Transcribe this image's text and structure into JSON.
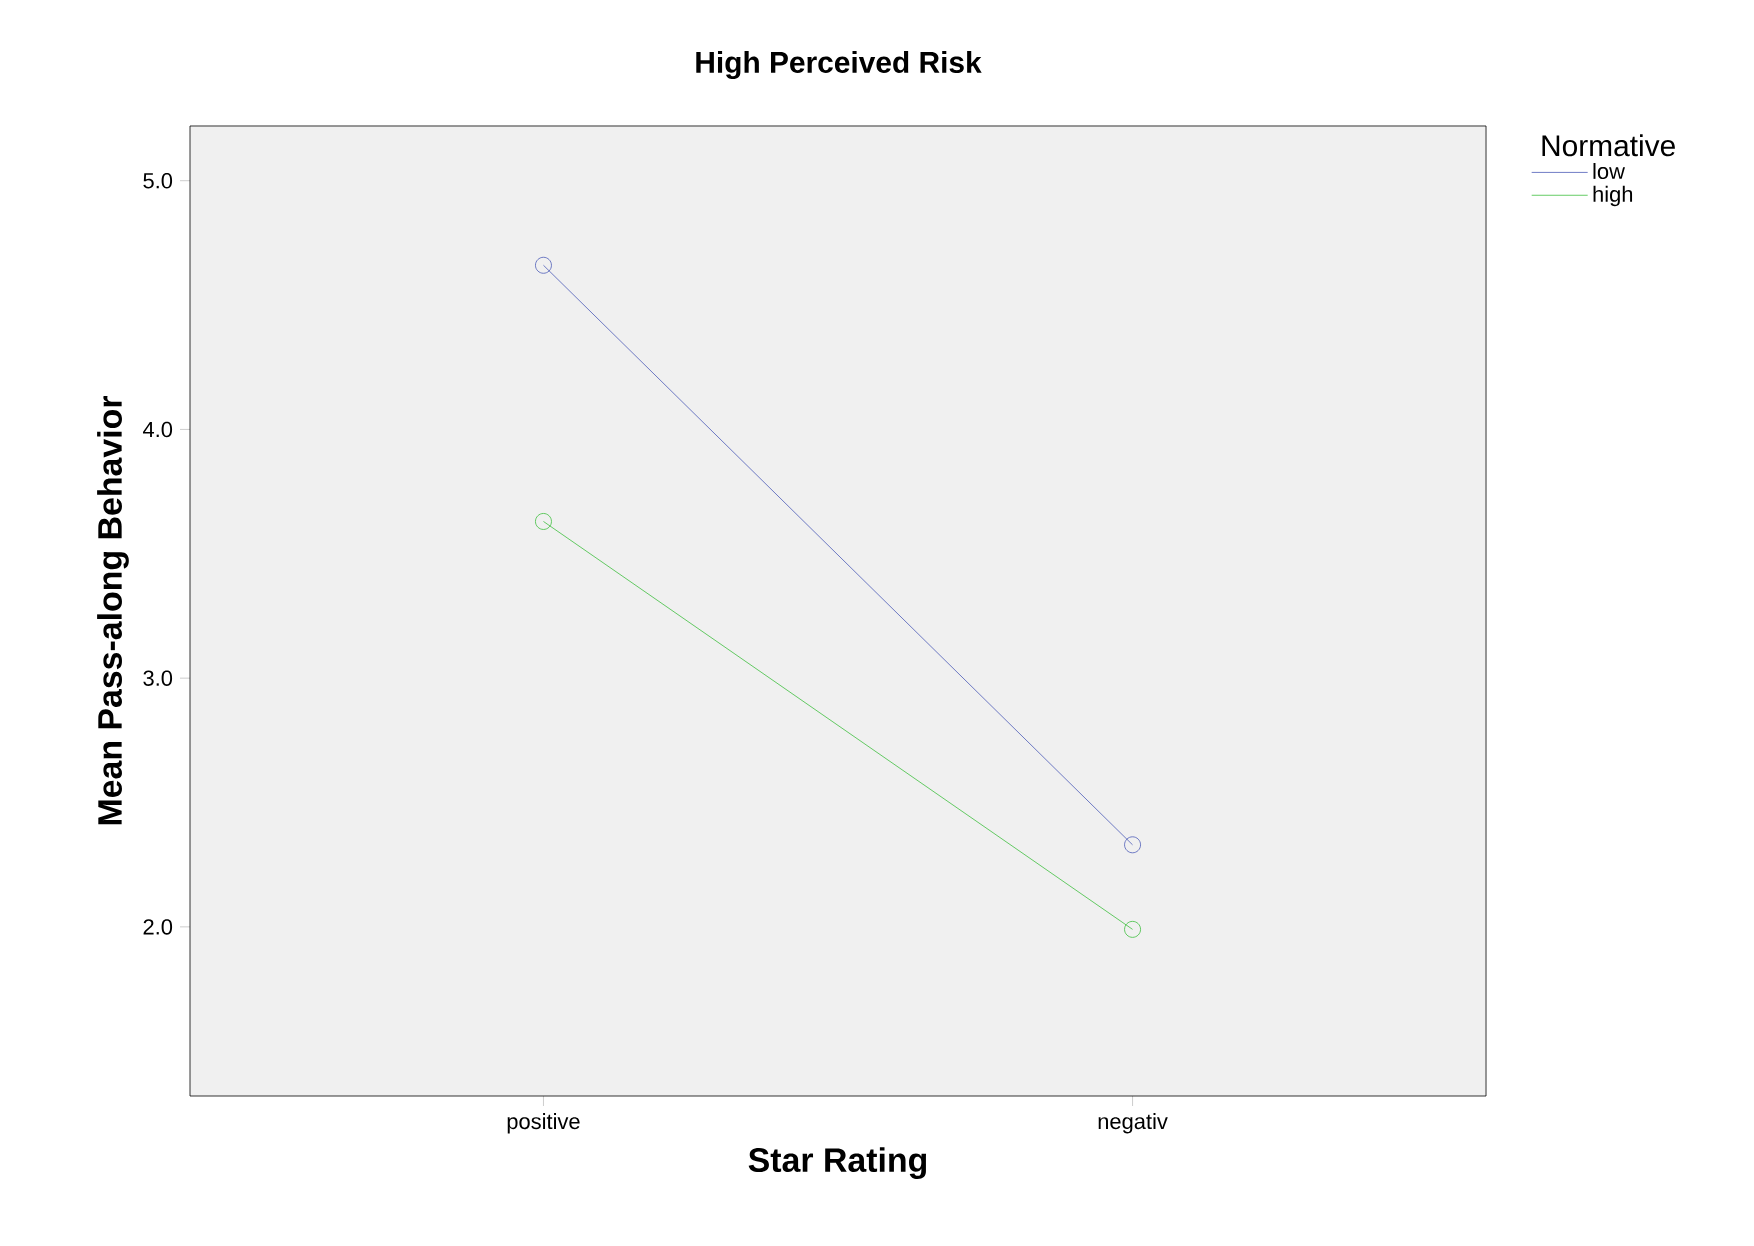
{
  "chart_data": {
    "type": "line",
    "title": "High Perceived Risk",
    "xlabel": "Star Rating",
    "ylabel": "Mean Pass-along Behavior",
    "legend_title": "Normative",
    "categories": [
      "positive",
      "negativ"
    ],
    "series": [
      {
        "name": "low",
        "color": "#4c5cb8",
        "values": [
          4.66,
          2.33
        ]
      },
      {
        "name": "high",
        "color": "#3fbf3f",
        "values": [
          3.63,
          1.99
        ]
      }
    ],
    "ylim": [
      1.32,
      5.22
    ],
    "yticks": [
      {
        "value": 2,
        "label": "2.0"
      },
      {
        "value": 3,
        "label": "3.0"
      },
      {
        "value": 4,
        "label": "4.0"
      },
      {
        "value": 5,
        "label": "5.0"
      }
    ],
    "grid": false,
    "legend": "top right",
    "marker": "circle",
    "line_style": "solid"
  }
}
